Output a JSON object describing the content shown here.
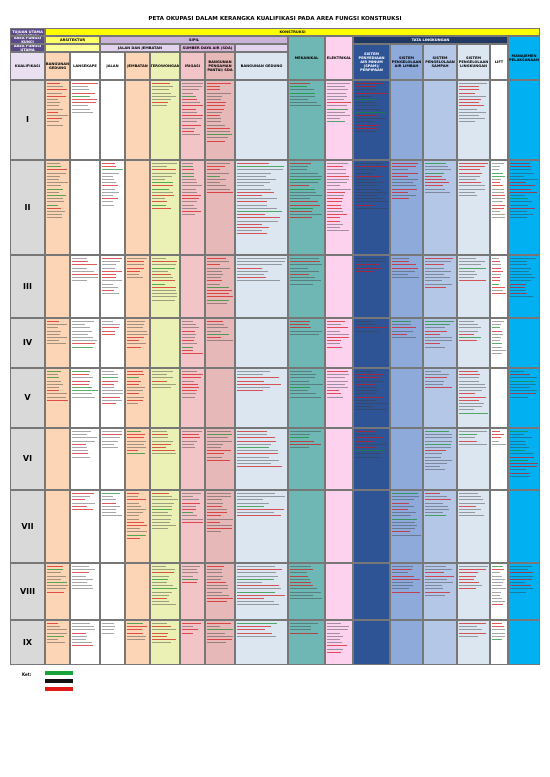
{
  "header": {
    "title": "PETA OKUPASI DALAM KERANGKA KUALIFIKASI PADA AREA FUNGSI KONSTRUKSI"
  },
  "table": {
    "row_headers": [
      "AREA FUNGSI TUJUAN UTAMA (KEGIATAN)",
      "AREA FUNGSI KUNCI",
      "AREA FUNGSI UTAMA",
      "KUALIFIKASI"
    ],
    "main_function": "KONSTRUKSI",
    "key_functions": [
      "ARSITEKTUR",
      "SIPIL",
      "TATA LINGKUNGAN"
    ],
    "sub_functions": [
      "JALAN DAN JEMBATAN",
      "SUMBER DAYA AIR (SDA)"
    ],
    "columns": [
      "BANGUNAN GEDUNG",
      "LANSEKAPE",
      "JALAN",
      "JEMBATAN",
      "TEROWONGAN",
      "IRIGASI",
      "BANGUNAN PENGAMAN PANTAI/ SDA",
      "BANGUNAN GEDUNG",
      "MEKANIKAL",
      "ELEKTRIKAL",
      "SISTEM PENYEDIAAN AIR MINUM (SPAM)/ PERPIPAAN",
      "SISTEM PENGELOLAAN AIR LIMBAH",
      "SISTEM PENGELOLAAN SAMPAH",
      "SISTEM PENGELOLAAN LINGKUNGAN",
      "LIFT",
      "MANAJEMEN PELAKSANAAN"
    ],
    "levels": [
      "I",
      "II",
      "III",
      "IV",
      "V",
      "VI",
      "VII",
      "VIII",
      "IX"
    ]
  },
  "legend": {
    "label": "Ket:"
  }
}
